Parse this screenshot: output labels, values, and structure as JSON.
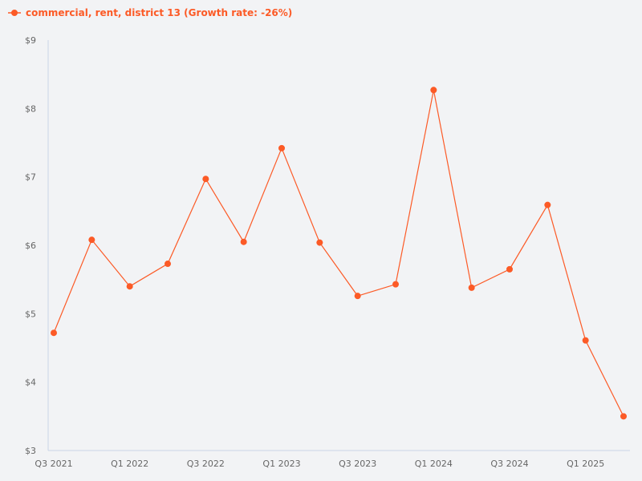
{
  "colors": {
    "series": "#fc5a26",
    "axis": "#c9d4e8",
    "background": "#f2f3f5",
    "tick_text": "#666666"
  },
  "legend": {
    "icon": "line-with-dot-icon",
    "label": "commercial, rent, district 13 (Growth rate: -26%)"
  },
  "chart_data": {
    "type": "line",
    "title": "",
    "xlabel": "",
    "ylabel": "",
    "ylim": [
      3,
      9
    ],
    "grid": false,
    "legend_position": "top-left",
    "y_ticks": [
      "$3",
      "$4",
      "$5",
      "$6",
      "$7",
      "$8",
      "$9"
    ],
    "x_tick_labels": [
      "Q3 2021",
      "Q1 2022",
      "Q3 2022",
      "Q1 2023",
      "Q3 2023",
      "Q1 2024",
      "Q3 2024",
      "Q1 2025"
    ],
    "categories": [
      "Q3 2021",
      "Q4 2021",
      "Q1 2022",
      "Q2 2022",
      "Q3 2022",
      "Q4 2022",
      "Q1 2023",
      "Q2 2023",
      "Q3 2023",
      "Q4 2023",
      "Q1 2024",
      "Q2 2024",
      "Q3 2024",
      "Q4 2024",
      "Q1 2025",
      "Q2 2025"
    ],
    "series": [
      {
        "name": "commercial, rent, district 13 (Growth rate: -26%)",
        "values": [
          4.72,
          6.08,
          5.4,
          5.73,
          6.97,
          6.05,
          7.42,
          6.04,
          5.26,
          5.43,
          8.27,
          5.38,
          5.65,
          6.59,
          4.61,
          3.5
        ]
      }
    ]
  }
}
